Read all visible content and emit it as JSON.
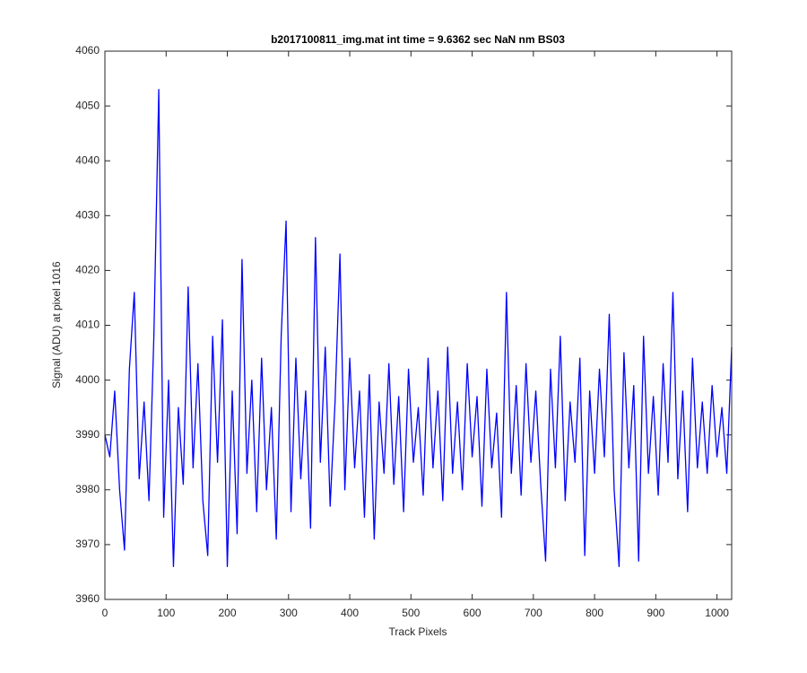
{
  "chart_data": {
    "type": "line",
    "title": "b2017100811_img.mat int time = 9.6362 sec  NaN nm BS03",
    "x_label": "Track Pixels",
    "y_label": "Signal (ADU) at pixel 1016",
    "xlim": [
      0,
      1024
    ],
    "ylim": [
      3960,
      4060
    ],
    "xticks": [
      0,
      100,
      200,
      300,
      400,
      500,
      600,
      700,
      800,
      900,
      1000
    ],
    "yticks": [
      3960,
      3970,
      3980,
      3990,
      4000,
      4010,
      4020,
      4030,
      4040,
      4050,
      4060
    ],
    "grid": false,
    "x": [
      0,
      8,
      16,
      24,
      32,
      40,
      48,
      56,
      64,
      72,
      80,
      88,
      96,
      104,
      112,
      120,
      128,
      136,
      144,
      152,
      160,
      168,
      176,
      184,
      192,
      200,
      208,
      216,
      224,
      232,
      240,
      248,
      256,
      264,
      272,
      280,
      288,
      296,
      304,
      312,
      320,
      328,
      336,
      344,
      352,
      360,
      368,
      376,
      384,
      392,
      400,
      408,
      416,
      424,
      432,
      440,
      448,
      456,
      464,
      472,
      480,
      488,
      496,
      504,
      512,
      520,
      528,
      536,
      544,
      552,
      560,
      568,
      576,
      584,
      592,
      600,
      608,
      616,
      624,
      632,
      640,
      648,
      656,
      664,
      672,
      680,
      688,
      696,
      704,
      712,
      720,
      728,
      736,
      744,
      752,
      760,
      768,
      776,
      784,
      792,
      800,
      808,
      816,
      824,
      832,
      840,
      848,
      856,
      864,
      872,
      880,
      888,
      896,
      904,
      912,
      920,
      928,
      936,
      944,
      952,
      960,
      968,
      976,
      984,
      992,
      1000,
      1008,
      1016,
      1024
    ],
    "series": [
      {
        "name": "signal",
        "color": "#0000ff",
        "values": [
          3990,
          3986,
          3998,
          3980,
          3969,
          4002,
          4016,
          3982,
          3996,
          3978,
          4008,
          4053,
          3975,
          4000,
          3966,
          3995,
          3981,
          4017,
          3984,
          4003,
          3978,
          3968,
          4008,
          3985,
          4011,
          3966,
          3998,
          3972,
          4022,
          3983,
          4000,
          3976,
          4004,
          3980,
          3995,
          3971,
          4008,
          4029,
          3976,
          4004,
          3982,
          3998,
          3973,
          4026,
          3985,
          4006,
          3977,
          3996,
          4023,
          3980,
          4004,
          3984,
          3998,
          3975,
          4001,
          3971,
          3996,
          3983,
          4003,
          3981,
          3997,
          3976,
          4002,
          3985,
          3995,
          3979,
          4004,
          3984,
          3998,
          3978,
          4006,
          3983,
          3996,
          3980,
          4003,
          3986,
          3997,
          3977,
          4002,
          3984,
          3994,
          3975,
          4016,
          3983,
          3999,
          3979,
          4003,
          3985,
          3998,
          3981,
          3967,
          4002,
          3984,
          4008,
          3978,
          3996,
          3985,
          4004,
          3968,
          3998,
          3983,
          4002,
          3986,
          4012,
          3980,
          3966,
          4005,
          3984,
          3999,
          3967,
          4008,
          3983,
          3997,
          3979,
          4003,
          3985,
          4016,
          3982,
          3998,
          3976,
          4004,
          3984,
          3996,
          3983,
          3999,
          3986,
          3995,
          3983,
          4006
        ]
      }
    ]
  }
}
